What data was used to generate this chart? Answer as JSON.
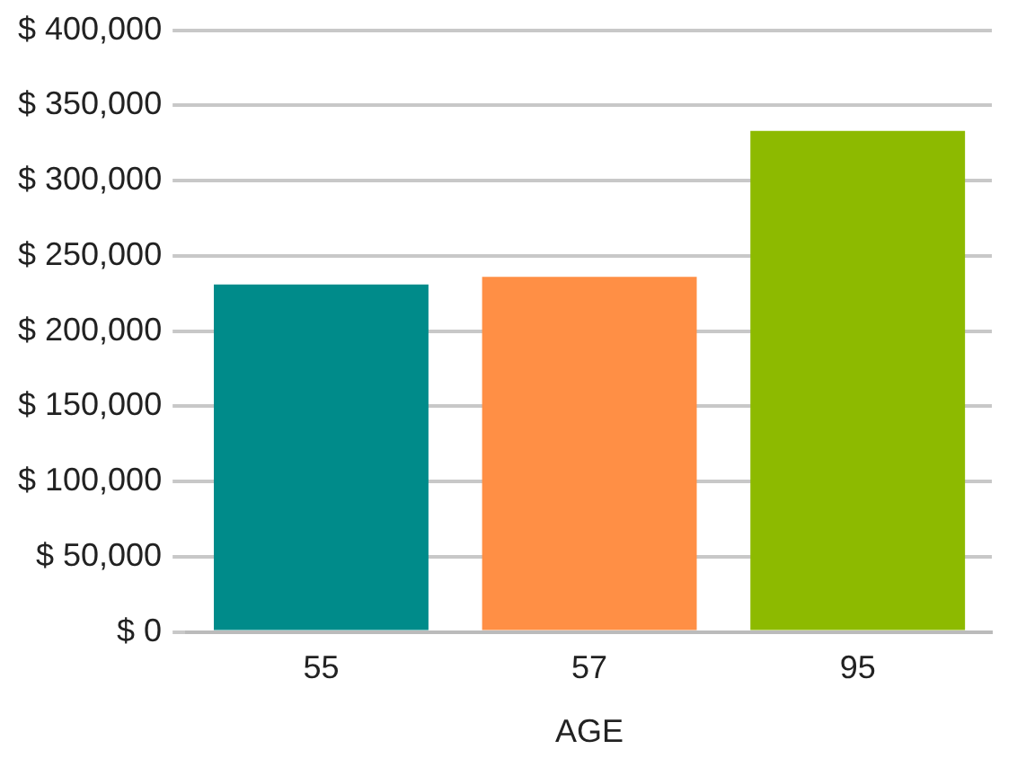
{
  "chart_data": {
    "type": "bar",
    "xlabel": "AGE",
    "categories": [
      "55",
      "57",
      "95"
    ],
    "values": [
      231000,
      236000,
      333000
    ],
    "colors": [
      "#008b8a",
      "#ff8f45",
      "#8dba00"
    ],
    "ylim": [
      0,
      400000
    ],
    "yticks": [
      {
        "value": 0,
        "label": "$ 0"
      },
      {
        "value": 50000,
        "label": "$ 50,000"
      },
      {
        "value": 100000,
        "label": "$ 100,000"
      },
      {
        "value": 150000,
        "label": "$ 150,000"
      },
      {
        "value": 200000,
        "label": "$ 200,000"
      },
      {
        "value": 250000,
        "label": "$ 250,000"
      },
      {
        "value": 300000,
        "label": "$ 300,000"
      },
      {
        "value": 350000,
        "label": "$ 350,000"
      },
      {
        "value": 400000,
        "label": "$ 400,000"
      }
    ],
    "grid": "y",
    "legend": false
  }
}
